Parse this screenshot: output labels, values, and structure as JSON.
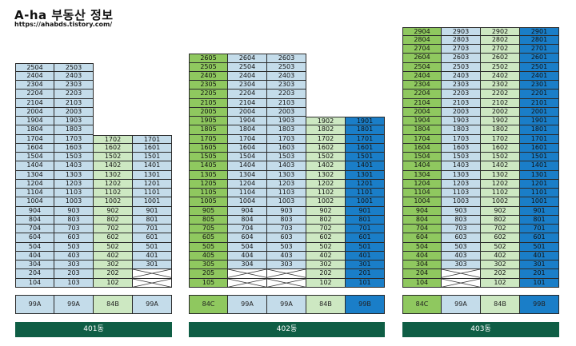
{
  "header": {
    "title": "A-ha 부동산 정보",
    "subtitle": "https://ahabds.tistory.com/"
  },
  "colors": {
    "light_blue": "#c4dcea",
    "light_green": "#cde8c2",
    "green": "#8fc85f",
    "blue": "#1a7ec8",
    "building_label_bg": "#0f5e45"
  },
  "buildings": [
    {
      "name": "401동",
      "line_types": [
        "99A",
        "99A",
        "84B",
        "99A"
      ],
      "line_colors": [
        "light_blue",
        "light_blue",
        "light_green",
        "light_blue"
      ],
      "line_floors": [
        [
          1,
          25
        ],
        [
          1,
          25
        ],
        [
          1,
          17
        ],
        [
          3,
          17
        ]
      ],
      "line_suffix": [
        "04",
        "03",
        "02",
        "01"
      ]
    },
    {
      "name": "402동",
      "line_types": [
        "84C",
        "99A",
        "99A",
        "84B",
        "99B"
      ],
      "line_colors": [
        "green",
        "light_blue",
        "light_blue",
        "light_green",
        "blue"
      ],
      "line_floors": [
        [
          1,
          26
        ],
        [
          3,
          26
        ],
        [
          3,
          26
        ],
        [
          1,
          19
        ],
        [
          1,
          19
        ]
      ],
      "line_suffix": [
        "05",
        "04",
        "03",
        "02",
        "01"
      ]
    },
    {
      "name": "403동",
      "line_types": [
        "84C",
        "99A",
        "84B",
        "99B"
      ],
      "line_colors": [
        "green",
        "light_blue",
        "light_green",
        "blue"
      ],
      "line_floors": [
        [
          1,
          29
        ],
        [
          3,
          29
        ],
        [
          1,
          29
        ],
        [
          1,
          29
        ]
      ],
      "line_suffix": [
        "04",
        "03",
        "02",
        "01"
      ]
    }
  ]
}
